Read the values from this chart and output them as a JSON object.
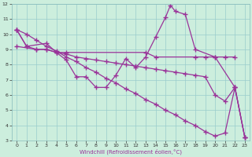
{
  "xlabel": "Windchill (Refroidissement éolien,°C)",
  "xlim": [
    -0.5,
    23.5
  ],
  "ylim": [
    3,
    12
  ],
  "yticks": [
    3,
    4,
    5,
    6,
    7,
    8,
    9,
    10,
    11,
    12
  ],
  "xticks": [
    0,
    1,
    2,
    3,
    4,
    5,
    6,
    7,
    8,
    9,
    10,
    11,
    12,
    13,
    14,
    15,
    16,
    17,
    18,
    19,
    20,
    21,
    22,
    23
  ],
  "bg_color": "#cceedd",
  "grid_color": "#99cccc",
  "line_color": "#993399",
  "line_width": 0.9,
  "marker": "+",
  "markersize": 4,
  "markeredgewidth": 1.0,
  "series1": [
    [
      0,
      10.3
    ],
    [
      1,
      9.2
    ],
    [
      3,
      9.4
    ],
    [
      4,
      8.8
    ],
    [
      5,
      8.3
    ],
    [
      6,
      7.2
    ],
    [
      7,
      7.2
    ],
    [
      8,
      6.5
    ],
    [
      9,
      6.5
    ],
    [
      10,
      7.3
    ],
    [
      11,
      8.4
    ],
    [
      12,
      7.8
    ],
    [
      13,
      8.5
    ],
    [
      14,
      9.8
    ],
    [
      15,
      11.1
    ],
    [
      15.5,
      11.9
    ],
    [
      16,
      11.5
    ],
    [
      17,
      11.3
    ],
    [
      18,
      9.0
    ],
    [
      20,
      8.5
    ],
    [
      22,
      6.5
    ],
    [
      23,
      3.2
    ]
  ],
  "series2": [
    [
      0,
      9.2
    ],
    [
      2,
      9.0
    ],
    [
      3,
      9.0
    ],
    [
      4,
      8.8
    ],
    [
      5,
      8.8
    ],
    [
      13,
      8.8
    ],
    [
      14,
      8.5
    ],
    [
      18,
      8.5
    ],
    [
      19,
      8.5
    ],
    [
      20,
      8.5
    ],
    [
      21,
      8.5
    ],
    [
      22,
      8.5
    ]
  ],
  "series3": [
    [
      0,
      10.3
    ],
    [
      1,
      10.0
    ],
    [
      2,
      9.6
    ],
    [
      3,
      9.2
    ],
    [
      4,
      8.9
    ],
    [
      5,
      8.5
    ],
    [
      6,
      8.2
    ],
    [
      7,
      7.8
    ],
    [
      8,
      7.5
    ],
    [
      9,
      7.1
    ],
    [
      10,
      6.8
    ],
    [
      11,
      6.4
    ],
    [
      12,
      6.1
    ],
    [
      13,
      5.7
    ],
    [
      14,
      5.4
    ],
    [
      15,
      5.0
    ],
    [
      16,
      4.7
    ],
    [
      17,
      4.3
    ],
    [
      18,
      4.0
    ],
    [
      19,
      3.6
    ],
    [
      20,
      3.3
    ],
    [
      21,
      3.5
    ],
    [
      22,
      6.5
    ],
    [
      23,
      3.2
    ]
  ],
  "series4": [
    [
      0,
      10.3
    ],
    [
      1,
      9.2
    ],
    [
      2,
      9.0
    ],
    [
      3,
      9.0
    ],
    [
      4,
      8.8
    ],
    [
      5,
      8.7
    ],
    [
      6,
      8.5
    ],
    [
      7,
      8.4
    ],
    [
      8,
      8.3
    ],
    [
      9,
      8.2
    ],
    [
      10,
      8.1
    ],
    [
      11,
      8.0
    ],
    [
      12,
      7.9
    ],
    [
      13,
      7.8
    ],
    [
      14,
      7.7
    ],
    [
      15,
      7.6
    ],
    [
      16,
      7.5
    ],
    [
      17,
      7.4
    ],
    [
      18,
      7.3
    ],
    [
      19,
      7.2
    ],
    [
      20,
      6.0
    ],
    [
      21,
      5.6
    ],
    [
      22,
      6.5
    ],
    [
      23,
      3.2
    ]
  ]
}
